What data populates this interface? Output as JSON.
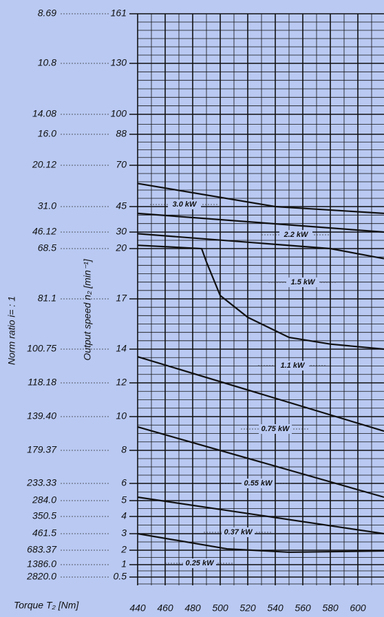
{
  "chart_data": {
    "type": "line",
    "x_label": "Torque  T₂  [Nm]",
    "y_label": "Output  speed   n₂  [min⁻¹]",
    "y2_label": "Norm  ratio  i= : 1",
    "xlim": [
      440,
      619
    ],
    "xticks": [
      440,
      460,
      480,
      500,
      520,
      540,
      560,
      580,
      600
    ],
    "ylim": [
      0.5,
      161
    ],
    "yticks": [
      161,
      130,
      100,
      88,
      70,
      45,
      30,
      20,
      17,
      14,
      12,
      10,
      8,
      6,
      5,
      4,
      3,
      2,
      1,
      0.5
    ],
    "ratios": [
      "8.69",
      "10.8",
      "14.08",
      "16.0",
      "20.12",
      "31.0",
      "46.12",
      "68.5",
      "81.1",
      "100.75",
      "118.18",
      "139.40",
      "179.37",
      "233.33",
      "284.0",
      "350.5",
      "461.5",
      "683.37",
      "1386.0",
      "2820.0"
    ],
    "color": "#111111",
    "series": [
      {
        "x": [
          440,
          540,
          619
        ],
        "values": [
          59,
          45,
          41
        ]
      },
      {
        "x": [
          440,
          619
        ],
        "values": [
          41,
          30
        ]
      },
      {
        "x": [
          440,
          580,
          619
        ],
        "values": [
          29,
          20,
          19.4
        ]
      },
      {
        "x": [
          440,
          486.5,
          490,
          500,
          520,
          550,
          580,
          619
        ],
        "values": [
          22,
          20,
          19.2,
          17.2,
          15.9,
          14.7,
          14.3,
          14
        ]
      },
      {
        "x": [
          440,
          619
        ],
        "values": [
          13.55,
          9.14
        ]
      },
      {
        "x": [
          440,
          619
        ],
        "values": [
          9.39,
          5.2
        ]
      },
      {
        "x": [
          440,
          619
        ],
        "values": [
          5.2,
          3
        ]
      },
      {
        "x": [
          440,
          505,
          550,
          619
        ],
        "values": [
          3,
          2.08,
          1.86,
          1.95
        ]
      }
    ],
    "annotations": [
      "3.0 kW",
      "2.2 kW",
      "1.5 kW",
      "1.1 kW",
      "0.75 kW",
      "0.55 kW",
      "0.37 kW",
      "0.25 kW"
    ]
  }
}
